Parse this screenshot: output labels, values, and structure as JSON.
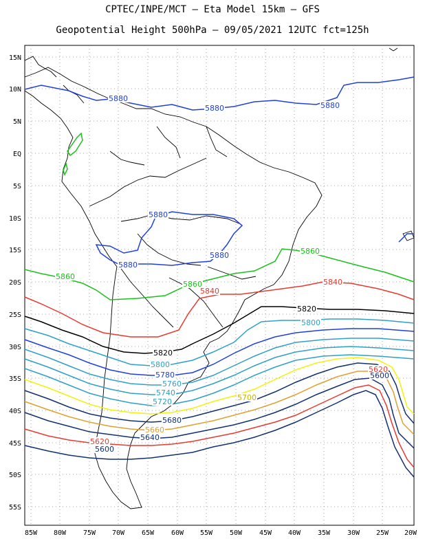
{
  "title": {
    "line1": "CPTEC/INPE/MCT –  Eta Model 15km – GFS",
    "line2": "Geopotential Height 500hPa – 09/05/2021 12UTC fct=125h"
  },
  "axes": {
    "lat_labels": [
      "15N",
      "10N",
      "5N",
      "EQ",
      "5S",
      "10S",
      "15S",
      "20S",
      "25S",
      "30S",
      "35S",
      "40S",
      "45S",
      "50S",
      "55S"
    ],
    "lon_labels": [
      "85W",
      "80W",
      "75W",
      "70W",
      "65W",
      "60W",
      "55W",
      "50W",
      "45W",
      "40W",
      "35W",
      "30W",
      "25W",
      "20W"
    ],
    "lon_range": [
      -86,
      -20
    ],
    "lat_range": [
      -58,
      17
    ]
  },
  "contour_colors": {
    "5880": "#1f3fdc",
    "5860": "#19c119",
    "5840": "#e8392f",
    "5820": "#000000",
    "5800": "#2ea0c8",
    "5780": "#1f3fdc",
    "5760": "#2ea0c8",
    "5740": "#2ea0c8",
    "5720": "#2ea0c8",
    "5700": "#f2f20a",
    "5680": "#103070",
    "5660": "#e0a030",
    "5640": "#103070",
    "5620": "#e8392f",
    "5600": "#103070"
  },
  "contour_labels": [
    {
      "text": "5880",
      "color": "#1f3fdc"
    },
    {
      "text": "5880",
      "color": "#1f3fdc"
    },
    {
      "text": "5880",
      "color": "#1f3fdc"
    },
    {
      "text": "5880",
      "color": "#1f3fdc"
    },
    {
      "text": "5880",
      "color": "#1f3fdc"
    },
    {
      "text": "5880",
      "color": "#1f3fdc"
    },
    {
      "text": "5860",
      "color": "#19c119"
    },
    {
      "text": "5860",
      "color": "#19c119"
    },
    {
      "text": "5860",
      "color": "#19c119"
    },
    {
      "text": "5840",
      "color": "#e8392f"
    },
    {
      "text": "5840",
      "color": "#e8392f"
    },
    {
      "text": "5820",
      "color": "#000000"
    },
    {
      "text": "5820",
      "color": "#000000"
    },
    {
      "text": "5800",
      "color": "#2ea0c8"
    },
    {
      "text": "5800",
      "color": "#2ea0c8"
    },
    {
      "text": "5780",
      "color": "#1f3fdc"
    },
    {
      "text": "5760",
      "color": "#2ea0c8"
    },
    {
      "text": "5740",
      "color": "#2ea0c8"
    },
    {
      "text": "5720",
      "color": "#2ea0c8"
    },
    {
      "text": "5700",
      "color": "#c8b400"
    },
    {
      "text": "5680",
      "color": "#103070"
    },
    {
      "text": "5660",
      "color": "#e0a030"
    },
    {
      "text": "5640",
      "color": "#103070"
    },
    {
      "text": "5620",
      "color": "#e8392f"
    },
    {
      "text": "5600",
      "color": "#103070"
    },
    {
      "text": "5620",
      "color": "#e8392f"
    },
    {
      "text": "5600",
      "color": "#103070"
    }
  ]
}
